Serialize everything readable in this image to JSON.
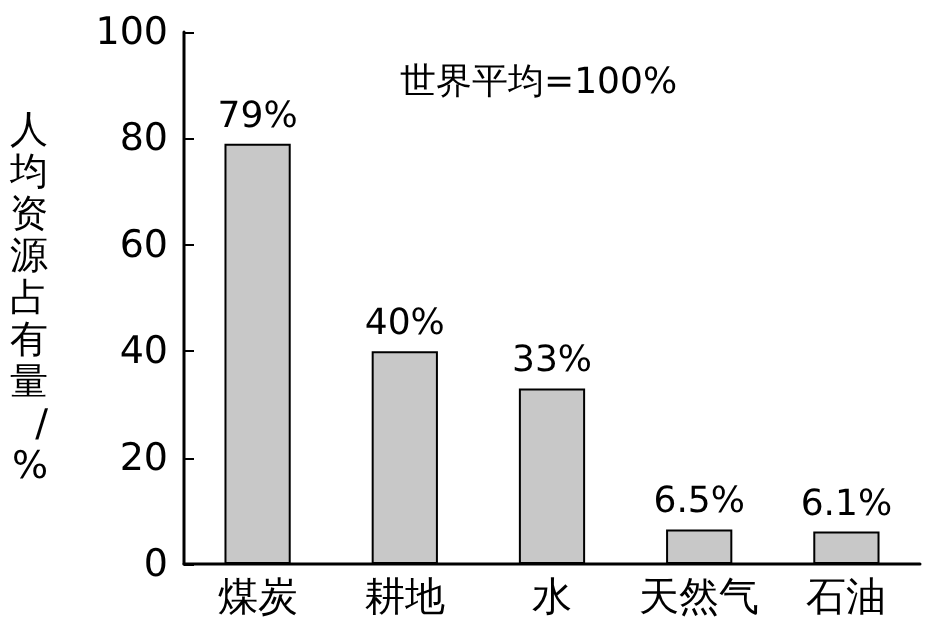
{
  "chart_data": {
    "type": "bar",
    "ylabel": "人均资源占有量/%",
    "annotations": [
      "世界平均=100%"
    ],
    "categories": [
      "煤炭",
      "耕地",
      "水",
      "天然气",
      "石油"
    ],
    "values": [
      79,
      40,
      33,
      6.5,
      6.1
    ],
    "value_labels": [
      "79%",
      "40%",
      "33%",
      "6.5%",
      "6.1%"
    ],
    "color": "#c8c8c8",
    "ylim": [
      0,
      100
    ],
    "yticks": [
      0,
      20,
      40,
      60,
      80,
      100
    ],
    "grid": false
  }
}
